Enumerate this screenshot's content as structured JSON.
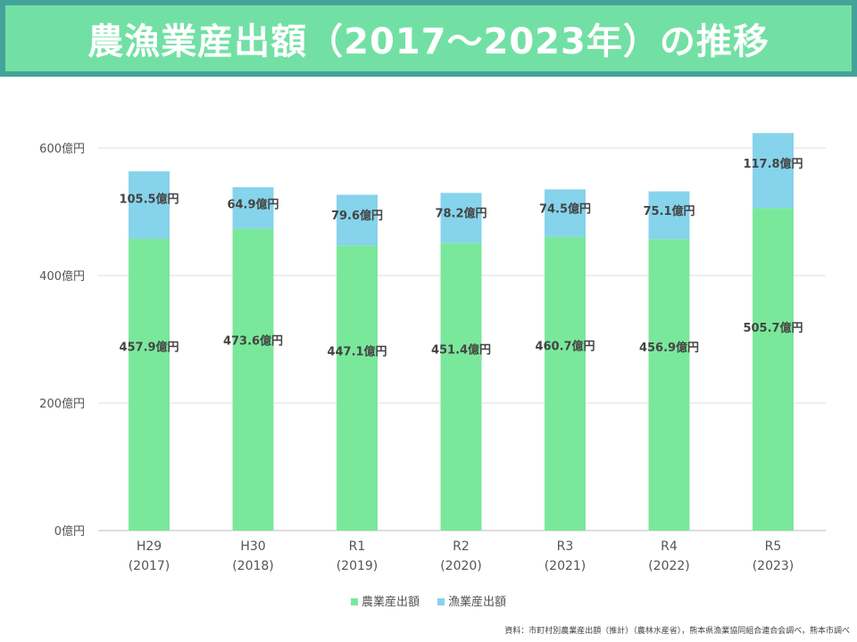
{
  "title": "農漁業産出額（2017〜2023年）の推移",
  "chart_data": {
    "type": "bar",
    "stacked": true,
    "categories": [
      [
        "H29",
        "(2017)"
      ],
      [
        "H30",
        "(2018)"
      ],
      [
        "R1",
        "(2019)"
      ],
      [
        "R2",
        "(2020)"
      ],
      [
        "R3",
        "(2021)"
      ],
      [
        "R4",
        "(2022)"
      ],
      [
        "R5",
        "(2023)"
      ]
    ],
    "series": [
      {
        "name": "農業産出額",
        "color": "#7ae89b",
        "values": [
          457.9,
          473.6,
          447.1,
          451.4,
          460.7,
          456.9,
          505.7
        ],
        "labels": [
          "457.9億円",
          "473.6億円",
          "447.1億円",
          "451.4億円",
          "460.7億円",
          "456.9億円",
          "505.7億円"
        ]
      },
      {
        "name": "漁業産出額",
        "color": "#86d3ec",
        "values": [
          105.5,
          64.9,
          79.6,
          78.2,
          74.5,
          75.1,
          117.8
        ],
        "labels": [
          "105.5億円",
          "64.9億円",
          "79.6億円",
          "78.2億円",
          "74.5億円",
          "75.1億円",
          "117.8億円"
        ]
      }
    ],
    "yticks": [
      0,
      200,
      400,
      600
    ],
    "ytick_labels": [
      "0億円",
      "200億円",
      "400億円",
      "600億円"
    ],
    "ylim": [
      0,
      600
    ],
    "grid": true,
    "legend": "bottom"
  },
  "source": "資料：市町村別農業産出額（推計）（農林水産省），熊本県漁業協同組合連合会調べ，熊本市調べ"
}
